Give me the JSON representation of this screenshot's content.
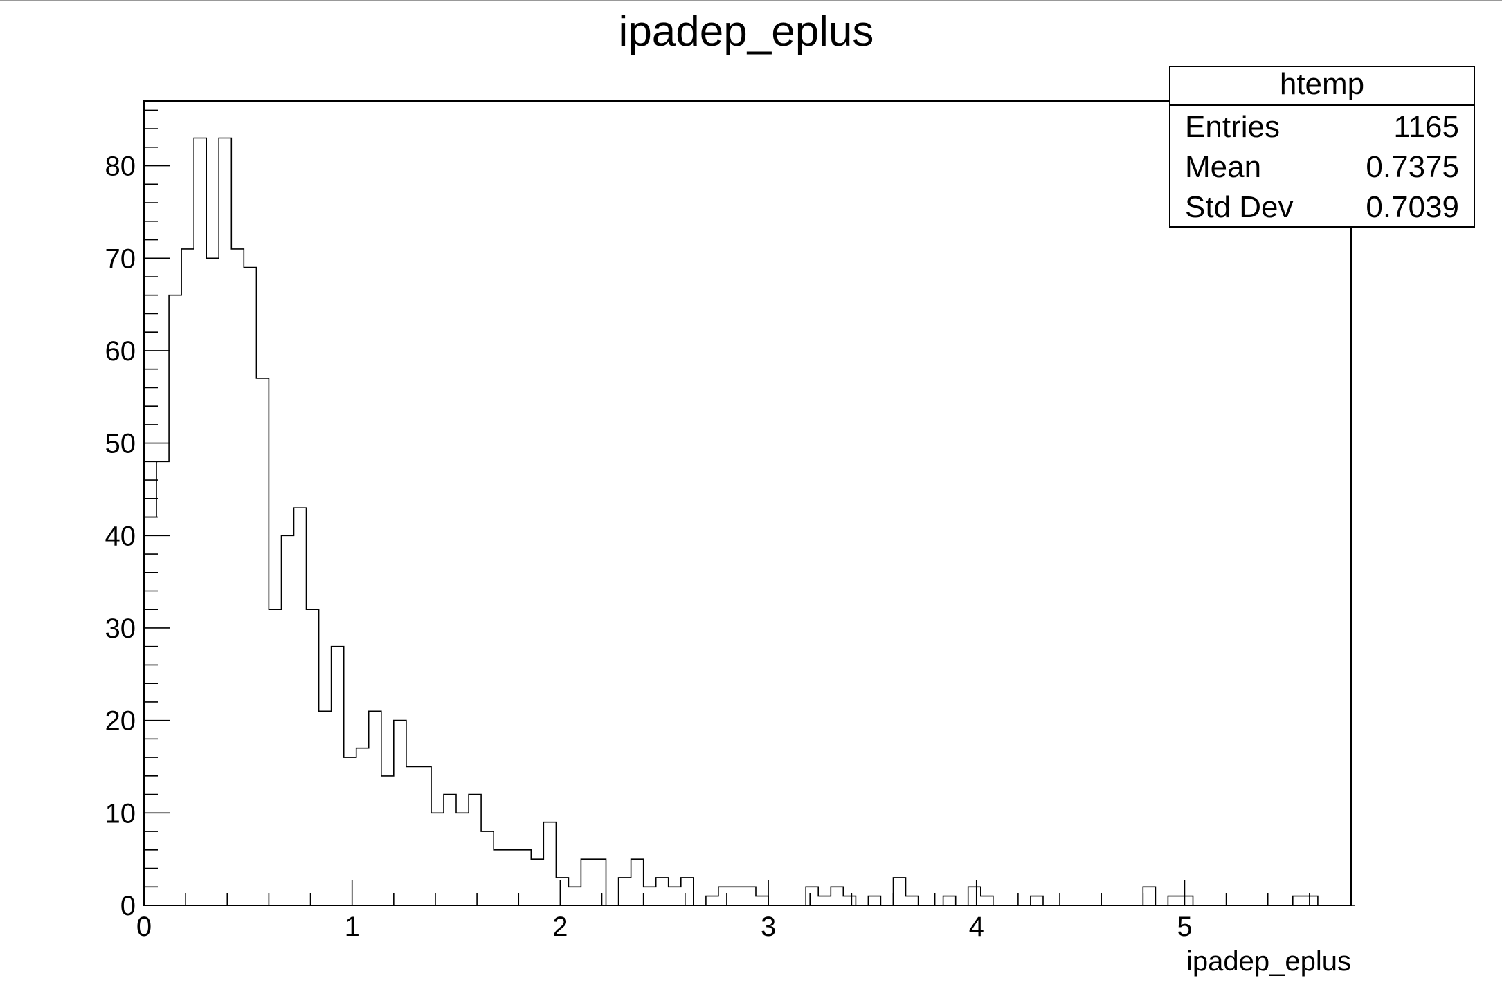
{
  "chart_data": {
    "type": "bar",
    "title": "ipadep_eplus",
    "xlabel": "ipadep_eplus",
    "ylabel": "",
    "xlim": [
      0,
      5.8
    ],
    "ylim": [
      0,
      87
    ],
    "bin_width": 0.06,
    "x_ticks": [
      "0",
      "1",
      "2",
      "3",
      "4",
      "5"
    ],
    "y_ticks": [
      "0",
      "10",
      "20",
      "30",
      "40",
      "50",
      "60",
      "70",
      "80"
    ],
    "grid": false,
    "legend": "none",
    "bins_low_edge": [
      0.0,
      0.06,
      0.12,
      0.18,
      0.24,
      0.3,
      0.36,
      0.42,
      0.48,
      0.54,
      0.6,
      0.66,
      0.72,
      0.78,
      0.84,
      0.9,
      0.96,
      1.02,
      1.08,
      1.14,
      1.2,
      1.26,
      1.32,
      1.38,
      1.44,
      1.5,
      1.56,
      1.62,
      1.68,
      1.74,
      1.8,
      1.86,
      1.92,
      1.98,
      2.04,
      2.1,
      2.16,
      2.22,
      2.28,
      2.34,
      2.4,
      2.46,
      2.52,
      2.58,
      2.64,
      2.7,
      2.76,
      2.82,
      2.88,
      2.94,
      3.0,
      3.06,
      3.12,
      3.18,
      3.24,
      3.3,
      3.36,
      3.42,
      3.48,
      3.54,
      3.6,
      3.66,
      3.72,
      3.78,
      3.84,
      3.9,
      3.96,
      4.02,
      4.08,
      4.14,
      4.2,
      4.26,
      4.32,
      4.38,
      4.44,
      4.5,
      4.56,
      4.62,
      4.68,
      4.74,
      4.8,
      4.86,
      4.92,
      4.98,
      5.04,
      5.1,
      5.16,
      5.22,
      5.28,
      5.34,
      5.4,
      5.46,
      5.52,
      5.58,
      5.64,
      5.7,
      5.76
    ],
    "values": [
      42,
      48,
      66,
      71,
      83,
      70,
      83,
      71,
      69,
      57,
      32,
      40,
      43,
      32,
      21,
      28,
      16,
      17,
      21,
      14,
      20,
      15,
      15,
      10,
      12,
      10,
      12,
      8,
      6,
      6,
      6,
      5,
      9,
      3,
      2,
      5,
      5,
      0,
      3,
      5,
      2,
      3,
      2,
      3,
      0,
      1,
      2,
      2,
      2,
      1,
      0,
      0,
      0,
      2,
      1,
      2,
      1,
      0,
      1,
      0,
      3,
      1,
      0,
      0,
      1,
      0,
      2,
      1,
      0,
      0,
      0,
      1,
      0,
      0,
      0,
      0,
      0,
      0,
      0,
      0,
      2,
      0,
      1,
      1,
      0,
      0,
      0,
      0,
      0,
      0,
      0,
      0,
      1,
      1,
      0,
      0,
      0
    ],
    "stats_box": {
      "name": "htemp",
      "rows": [
        {
          "label": "Entries",
          "value": "1165"
        },
        {
          "label": "Mean",
          "value": "0.7375"
        },
        {
          "label": "Std Dev",
          "value": "0.7039"
        }
      ]
    }
  }
}
